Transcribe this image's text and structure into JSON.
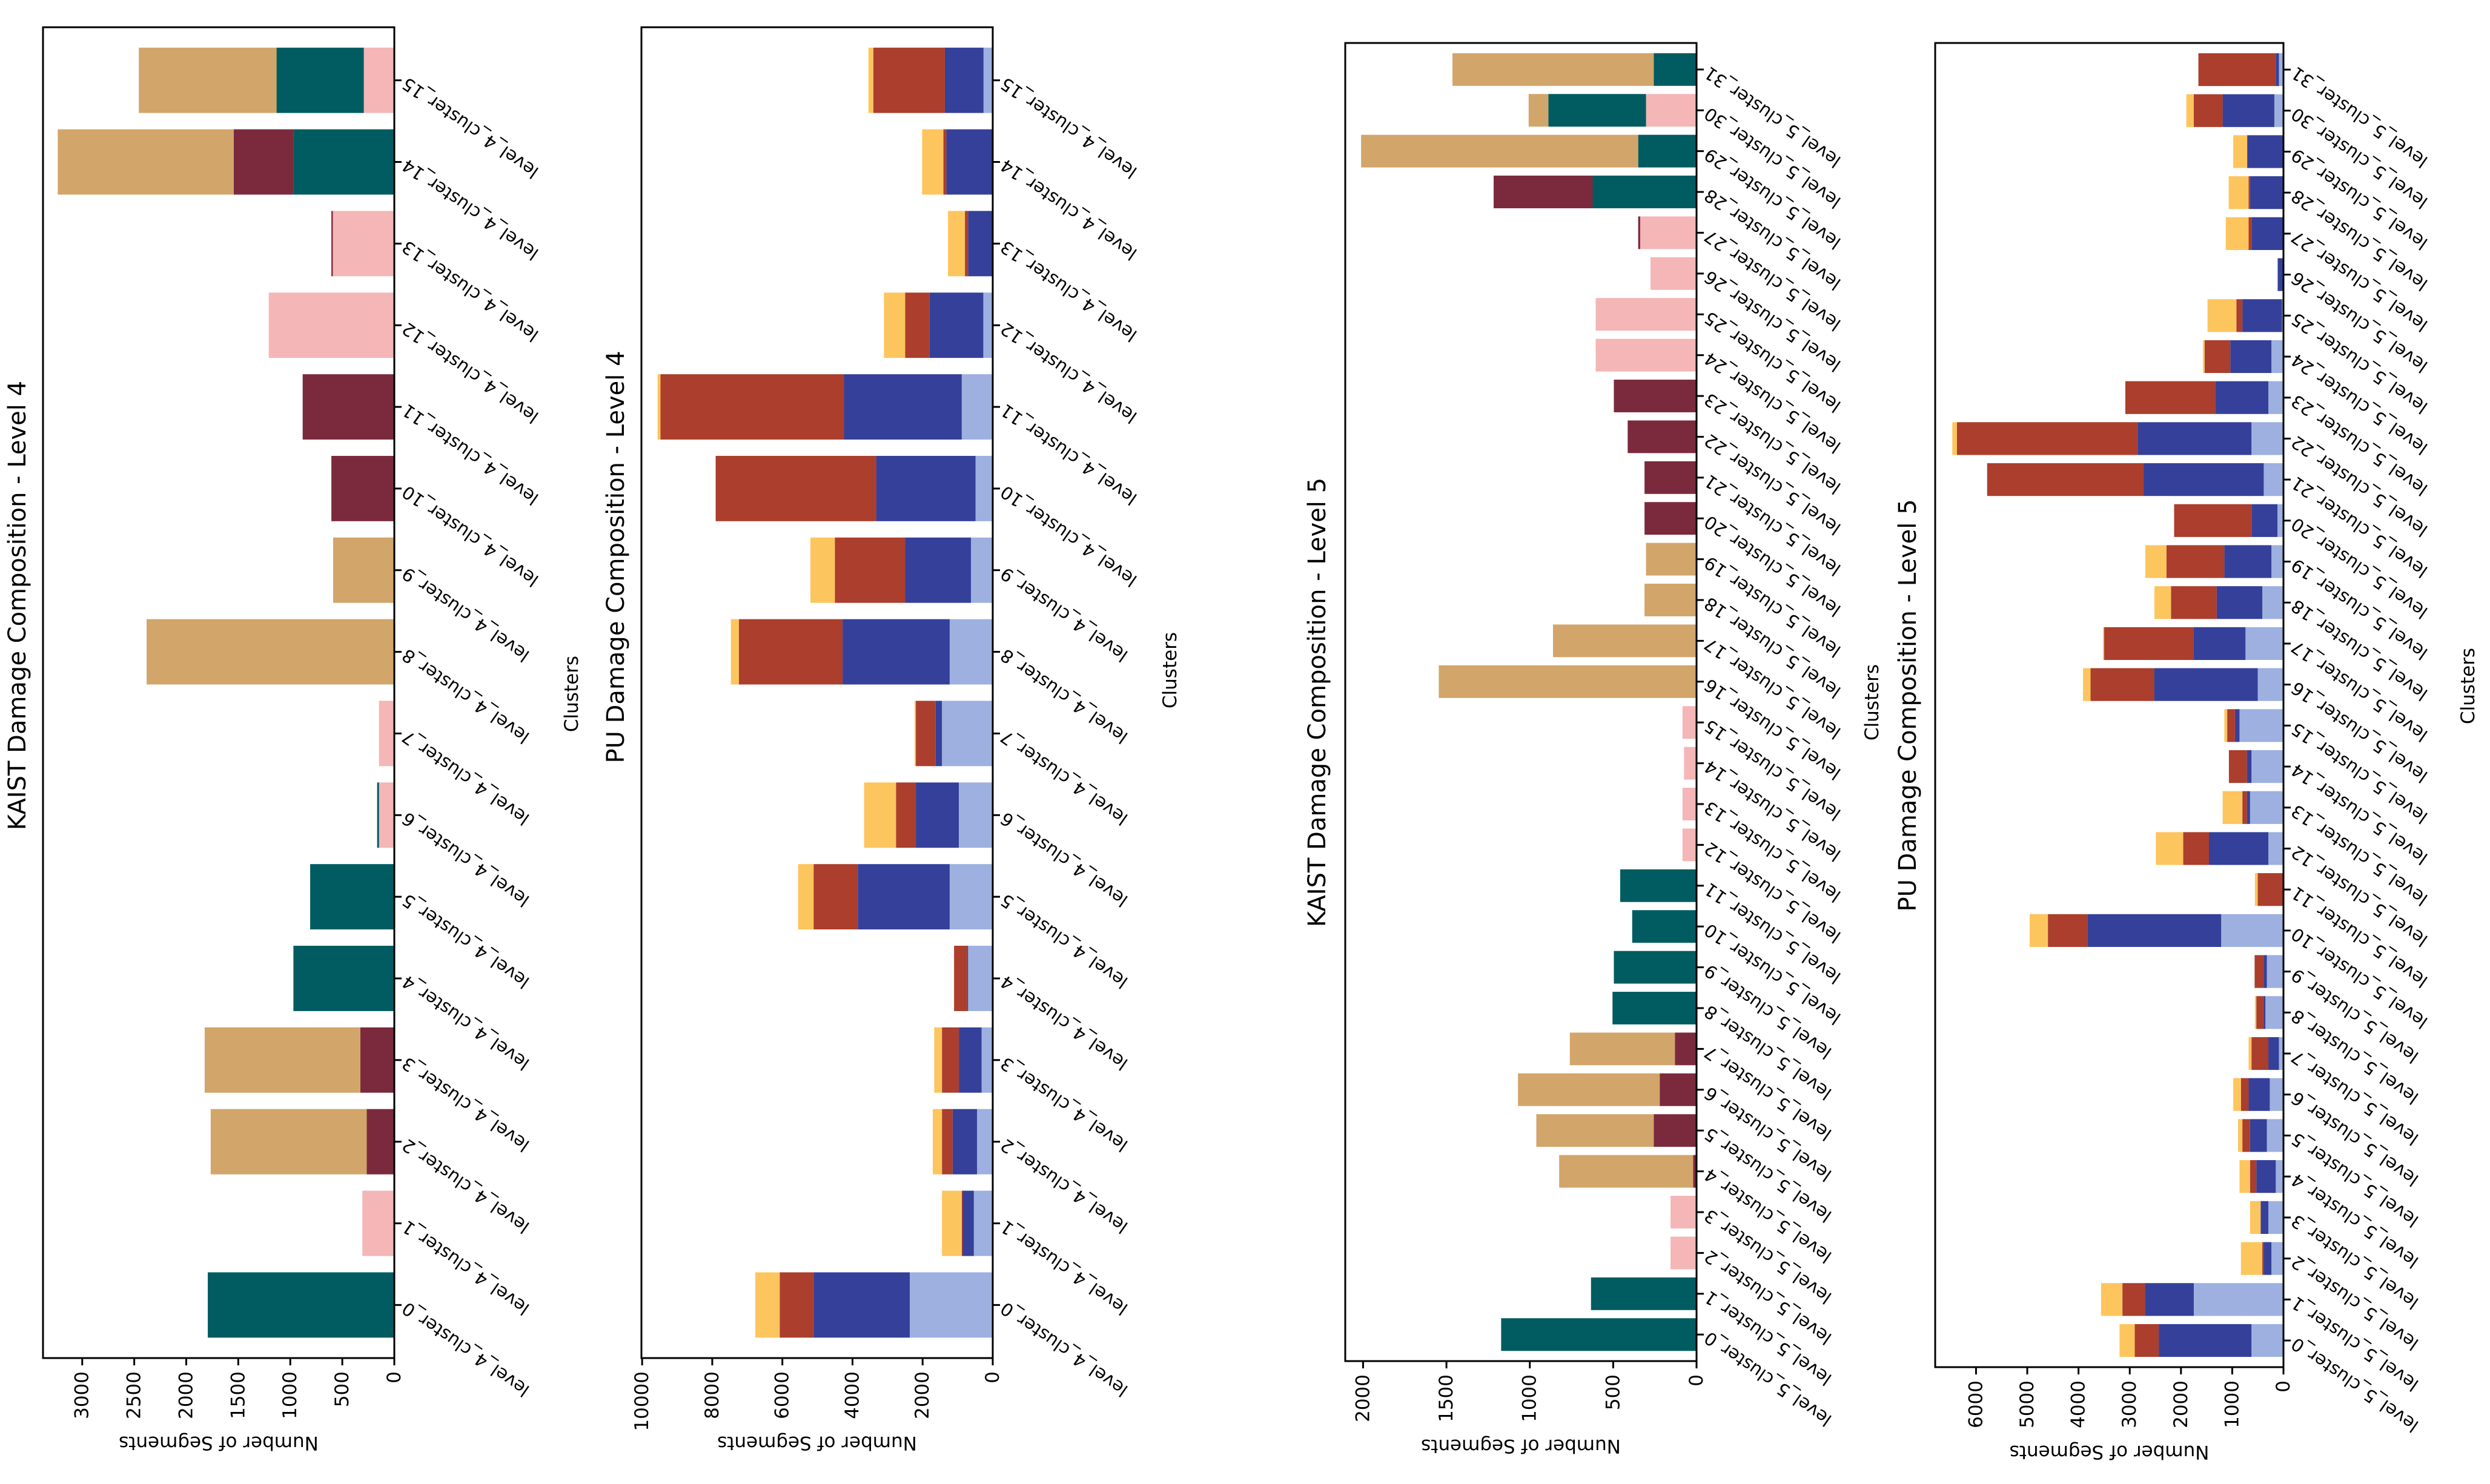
{
  "chart_data": [
    {
      "type": "bar",
      "stacked": true,
      "orientation": "rotated-horizontal",
      "title": "KAIST Damage Composition - Level 4",
      "xlabel": "Clusters",
      "ylabel": "Number of Segments",
      "ylim": [
        0,
        3377
      ],
      "ticks": [
        0,
        500,
        1000,
        1500,
        2000,
        2500,
        3000
      ],
      "categories": [
        "level_4_cluster_0",
        "level_4_cluster_1",
        "level_4_cluster_2",
        "level_4_cluster_3",
        "level_4_cluster_4",
        "level_4_cluster_5",
        "level_4_cluster_6",
        "level_4_cluster_7",
        "level_4_cluster_8",
        "level_4_cluster_9",
        "level_4_cluster_10",
        "level_4_cluster_11",
        "level_4_cluster_12",
        "level_4_cluster_13",
        "level_4_cluster_14",
        "level_4_cluster_15"
      ],
      "series": [
        {
          "color": "#f4b6b6",
          "values": [
            0,
            307,
            0,
            0,
            0,
            0,
            147,
            147,
            0,
            0,
            0,
            0,
            1207,
            591,
            0,
            293
          ]
        },
        {
          "color": "#005c61",
          "values": [
            1793,
            0,
            0,
            0,
            970,
            809,
            18,
            0,
            0,
            0,
            0,
            0,
            0,
            0,
            967,
            839
          ]
        },
        {
          "color": "#7b2a3d",
          "values": [
            0,
            0,
            265,
            326,
            0,
            0,
            0,
            0,
            0,
            0,
            605,
            881,
            0,
            14,
            577,
            0
          ]
        },
        {
          "color": "#d2a56a",
          "values": [
            0,
            0,
            1500,
            1497,
            0,
            0,
            0,
            0,
            2381,
            588,
            0,
            0,
            0,
            0,
            1691,
            1324
          ]
        }
      ]
    },
    {
      "type": "bar",
      "stacked": true,
      "orientation": "rotated-horizontal",
      "title": "PU Damage Composition - Level 4",
      "xlabel": "Clusters",
      "ylabel": "Number of Segments",
      "ylim": [
        0,
        10020
      ],
      "ticks": [
        0,
        2000,
        4000,
        6000,
        8000,
        10000
      ],
      "categories": [
        "level_4_cluster_0",
        "level_4_cluster_1",
        "level_4_cluster_2",
        "level_4_cluster_3",
        "level_4_cluster_4",
        "level_4_cluster_5",
        "level_4_cluster_6",
        "level_4_cluster_7",
        "level_4_cluster_8",
        "level_4_cluster_9",
        "level_4_cluster_10",
        "level_4_cluster_11",
        "level_4_cluster_12",
        "level_4_cluster_13",
        "level_4_cluster_14",
        "level_4_cluster_15"
      ],
      "series": [
        {
          "color": "#9db0e0",
          "values": [
            2366,
            538,
            448,
            317,
            703,
            1228,
            966,
            1448,
            1228,
            621,
            490,
            883,
            269,
            0,
            0,
            262
          ]
        },
        {
          "color": "#35409a",
          "values": [
            2744,
            317,
            697,
            649,
            28,
            2620,
            1227,
            180,
            3055,
            1876,
            2834,
            3358,
            1531,
            703,
            1324,
            1104
          ]
        },
        {
          "color": "#ab3e2c",
          "values": [
            966,
            28,
            303,
            482,
            372,
            1262,
            566,
            565,
            2958,
            2006,
            4579,
            5235,
            697,
            90,
            83,
            2041
          ]
        },
        {
          "color": "#fdc55e",
          "values": [
            696,
            565,
            262,
            221,
            0,
            442,
            910,
            35,
            228,
            697,
            0,
            83,
            606,
            483,
            607,
            138
          ]
        }
      ]
    },
    {
      "type": "bar",
      "stacked": true,
      "orientation": "rotated-horizontal",
      "title": "KAIST Damage Composition - Level 5",
      "xlabel": "Clusters",
      "ylabel": "Number of Segments",
      "ylim": [
        0,
        2107
      ],
      "ticks": [
        0,
        500,
        1000,
        1500,
        2000
      ],
      "categories": [
        "level_5_cluster_0",
        "level_5_cluster_1",
        "level_5_cluster_2",
        "level_5_cluster_3",
        "level_5_cluster_4",
        "level_5_cluster_5",
        "level_5_cluster_6",
        "level_5_cluster_7",
        "level_5_cluster_8",
        "level_5_cluster_9",
        "level_5_cluster_10",
        "level_5_cluster_11",
        "level_5_cluster_12",
        "level_5_cluster_13",
        "level_5_cluster_14",
        "level_5_cluster_15",
        "level_5_cluster_16",
        "level_5_cluster_17",
        "level_5_cluster_18",
        "level_5_cluster_19",
        "level_5_cluster_20",
        "level_5_cluster_21",
        "level_5_cluster_22",
        "level_5_cluster_23",
        "level_5_cluster_24",
        "level_5_cluster_25",
        "level_5_cluster_26",
        "level_5_cluster_27",
        "level_5_cluster_28",
        "level_5_cluster_29",
        "level_5_cluster_30",
        "level_5_cluster_31"
      ],
      "series": [
        {
          "color": "#f4b6b6",
          "values": [
            0,
            0,
            156,
            156,
            0,
            0,
            0,
            0,
            0,
            0,
            0,
            0,
            84,
            84,
            75,
            84,
            0,
            0,
            0,
            0,
            0,
            0,
            0,
            0,
            605,
            605,
            276,
            338,
            0,
            0,
            303,
            0
          ]
        },
        {
          "color": "#005c61",
          "values": [
            1172,
            633,
            0,
            0,
            0,
            0,
            0,
            0,
            504,
            496,
            386,
            458,
            0,
            0,
            0,
            0,
            0,
            0,
            0,
            0,
            0,
            0,
            0,
            0,
            0,
            0,
            0,
            0,
            623,
            350,
            586,
            257
          ]
        },
        {
          "color": "#7b2a3d",
          "values": [
            0,
            0,
            0,
            0,
            20,
            257,
            221,
            130,
            0,
            0,
            0,
            0,
            0,
            0,
            0,
            0,
            0,
            0,
            0,
            0,
            312,
            312,
            413,
            496,
            0,
            0,
            0,
            12,
            594,
            0,
            0,
            0
          ]
        },
        {
          "color": "#d2a56a",
          "values": [
            0,
            0,
            0,
            0,
            804,
            704,
            850,
            630,
            0,
            0,
            0,
            0,
            0,
            0,
            0,
            0,
            1546,
            861,
            312,
            303,
            0,
            0,
            0,
            0,
            0,
            0,
            0,
            0,
            0,
            1662,
            118,
            1207
          ]
        }
      ]
    },
    {
      "type": "bar",
      "stacked": true,
      "orientation": "rotated-horizontal",
      "title": "PU Damage Composition - Level 5",
      "xlabel": "Clusters",
      "ylabel": "Number of Segments",
      "ylim": [
        0,
        6797
      ],
      "ticks": [
        0,
        1000,
        2000,
        3000,
        4000,
        5000,
        6000
      ],
      "categories": [
        "level_5_cluster_0",
        "level_5_cluster_1",
        "level_5_cluster_2",
        "level_5_cluster_3",
        "level_5_cluster_4",
        "level_5_cluster_5",
        "level_5_cluster_6",
        "level_5_cluster_7",
        "level_5_cluster_8",
        "level_5_cluster_9",
        "level_5_cluster_10",
        "level_5_cluster_11",
        "level_5_cluster_12",
        "level_5_cluster_13",
        "level_5_cluster_14",
        "level_5_cluster_15",
        "level_5_cluster_16",
        "level_5_cluster_17",
        "level_5_cluster_18",
        "level_5_cluster_19",
        "level_5_cluster_20",
        "level_5_cluster_21",
        "level_5_cluster_22",
        "level_5_cluster_23",
        "level_5_cluster_24",
        "level_5_cluster_25",
        "level_5_cluster_26",
        "level_5_cluster_27",
        "level_5_cluster_28",
        "level_5_cluster_29",
        "level_5_cluster_30",
        "level_5_cluster_31"
      ],
      "series": [
        {
          "color": "#9db0e0",
          "values": [
            624,
            1750,
            235,
            295,
            150,
            324,
            267,
            89,
            352,
            324,
            1215,
            0,
            295,
            652,
            624,
            858,
            502,
            741,
            413,
            235,
            117,
            385,
            624,
            295,
            235,
            28,
            0,
            0,
            0,
            0,
            178,
            89
          ]
        },
        {
          "color": "#35409a",
          "values": [
            1810,
            952,
            150,
            151,
            380,
            328,
            413,
            206,
            33,
            61,
            2612,
            0,
            1159,
            61,
            89,
            89,
            2021,
            1009,
            891,
            919,
            507,
            2345,
            2223,
            1037,
            802,
            774,
            113,
            624,
            652,
            708,
            1009,
            61
          ]
        },
        {
          "color": "#ab3e2c",
          "values": [
            469,
            441,
            28,
            0,
            122,
            150,
            150,
            329,
            145,
            178,
            770,
            502,
            502,
            89,
            352,
            151,
            1243,
            1749,
            891,
            1130,
            1510,
            3053,
            3527,
            1754,
            501,
            117,
            0,
            56,
            28,
            0,
            563,
            1510
          ]
        },
        {
          "color": "#fdc55e",
          "values": [
            296,
            417,
            417,
            206,
            206,
            84,
            150,
            56,
            28,
            0,
            356,
            56,
            535,
            385,
            0,
            56,
            146,
            23,
            324,
            413,
            0,
            0,
            89,
            0,
            33,
            563,
            0,
            446,
            389,
            272,
            145,
            0
          ]
        }
      ]
    }
  ]
}
